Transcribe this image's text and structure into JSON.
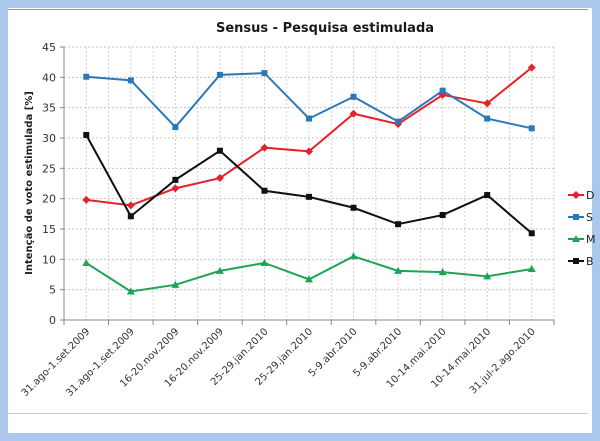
{
  "chart_data": {
    "type": "line",
    "title": "Sensus - Pesquisa estimulada",
    "xlabel": "",
    "ylabel": "Intenção de voto estimulada [%]",
    "ylim": [
      0,
      45
    ],
    "yticks": [
      0,
      5,
      10,
      15,
      20,
      25,
      30,
      35,
      40,
      45
    ],
    "grid": true,
    "legend_position": "right",
    "categories": [
      "31.ago-1.set.2009",
      "31.ago-1.set.2009",
      "16-20.nov.2009",
      "16-20.nov.2009",
      "25-29.jan.2010",
      "25-29.jan.2010",
      "5-9.abr.2010",
      "5-9.abr.2010",
      "10-14.mai.2010",
      "10-14.mai.2010",
      "31.jul-2.ago.2010"
    ],
    "series": [
      {
        "name": "D",
        "color": "#e8202a",
        "marker": "diamond",
        "values": [
          19.8,
          18.9,
          21.7,
          23.4,
          28.4,
          27.8,
          34.0,
          32.3,
          37.1,
          35.7,
          41.6
        ]
      },
      {
        "name": "S",
        "color": "#2a78b8",
        "marker": "square",
        "values": [
          40.1,
          39.5,
          31.8,
          40.4,
          40.7,
          33.2,
          36.8,
          32.7,
          37.8,
          33.2,
          31.6
        ]
      },
      {
        "name": "M",
        "color": "#1fa454",
        "marker": "triangle",
        "values": [
          9.4,
          4.7,
          5.8,
          8.1,
          9.4,
          6.7,
          10.5,
          8.1,
          7.9,
          7.2,
          8.4
        ]
      },
      {
        "name": "B",
        "color": "#111111",
        "marker": "square",
        "values": [
          30.5,
          17.1,
          23.1,
          27.9,
          21.3,
          20.3,
          18.5,
          15.8,
          17.3,
          20.6,
          14.3
        ]
      }
    ]
  }
}
